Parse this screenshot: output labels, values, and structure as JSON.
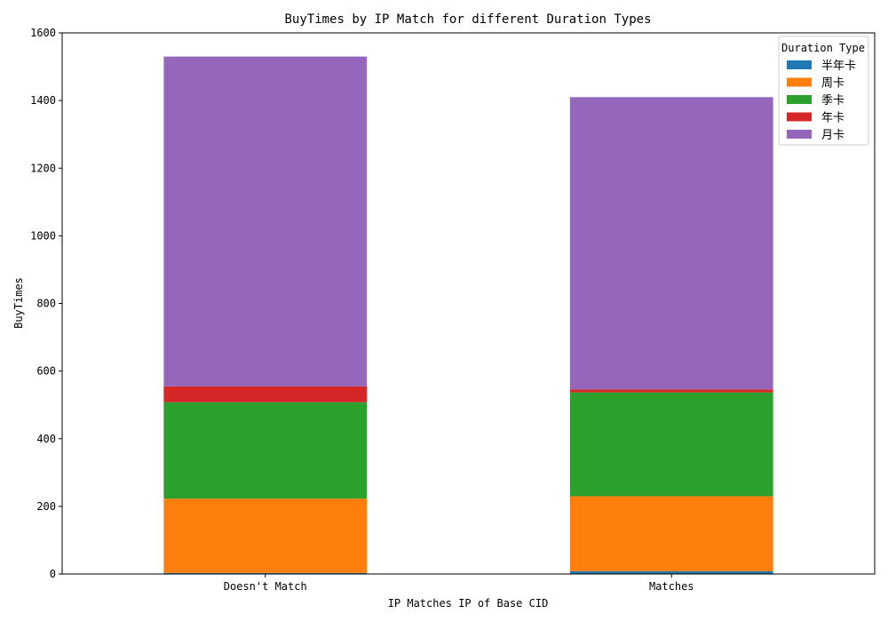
{
  "chart_data": {
    "type": "bar",
    "stacked": true,
    "title": "BuyTimes by IP Match for different Duration Types",
    "xlabel": "IP Matches IP of Base CID",
    "ylabel": "BuyTimes",
    "categories": [
      "Doesn't Match",
      "Matches"
    ],
    "ylim": [
      0,
      1600
    ],
    "yticks": [
      0,
      200,
      400,
      600,
      800,
      1000,
      1200,
      1400,
      1600
    ],
    "grid": false,
    "legend": {
      "title": "Duration Type",
      "placement": "top-right"
    },
    "series": [
      {
        "name": "半年卡",
        "color": "#1f77b4",
        "values": [
          3,
          8
        ]
      },
      {
        "name": "周卡",
        "color": "#ff7f0e",
        "values": [
          220,
          222
        ]
      },
      {
        "name": "季卡",
        "color": "#2ca02c",
        "values": [
          285,
          307
        ]
      },
      {
        "name": "年卡",
        "color": "#d62728",
        "values": [
          47,
          9
        ]
      },
      {
        "name": "月卡",
        "color": "#9467bd",
        "values": [
          975,
          864
        ]
      }
    ]
  }
}
